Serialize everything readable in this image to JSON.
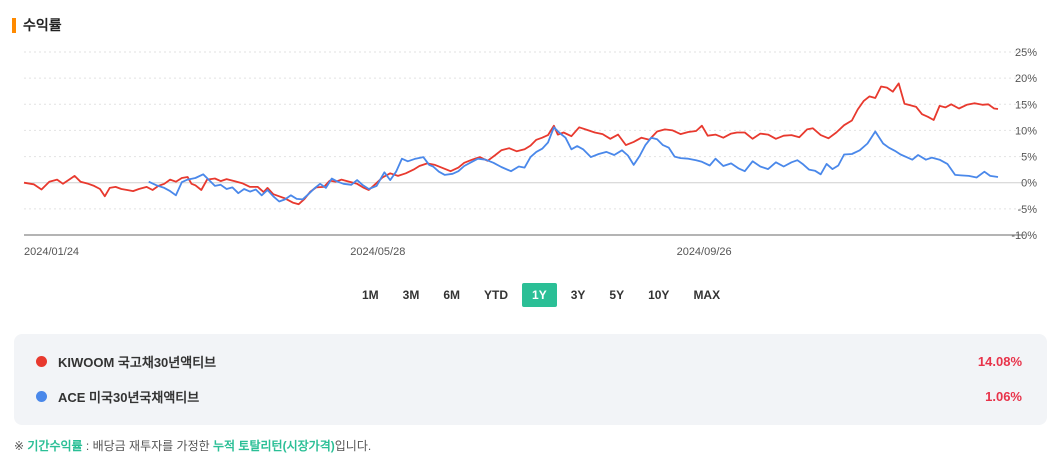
{
  "header": {
    "title": "수익률"
  },
  "chart_data": {
    "type": "line",
    "ylim": [
      -10,
      25
    ],
    "y_ticks": [
      25,
      20,
      15,
      10,
      5,
      0,
      -5,
      -10
    ],
    "y_tick_labels": [
      "25%",
      "20%",
      "15%",
      "10%",
      "5%",
      "0%",
      "-5%",
      "-10%"
    ],
    "x_tick_labels": [
      "2024/01/24",
      "2024/05/28",
      "2024/09/26"
    ],
    "x_tick_positions": [
      0,
      0.335,
      0.67
    ],
    "grid": true,
    "series": [
      {
        "name": "KIWOOM 국고채30년액티브",
        "color": "#e8392e",
        "points": [
          [
            0,
            0
          ],
          [
            0.01,
            -0.3
          ],
          [
            0.018,
            -1.3
          ],
          [
            0.026,
            0.2
          ],
          [
            0.034,
            0.6
          ],
          [
            0.04,
            -0.2
          ],
          [
            0.048,
            0.8
          ],
          [
            0.052,
            1.3
          ],
          [
            0.058,
            0.2
          ],
          [
            0.066,
            -0.2
          ],
          [
            0.072,
            -0.6
          ],
          [
            0.078,
            -1.2
          ],
          [
            0.083,
            -2.6
          ],
          [
            0.088,
            -1
          ],
          [
            0.094,
            -0.8
          ],
          [
            0.1,
            -1.2
          ],
          [
            0.106,
            -1.4
          ],
          [
            0.112,
            -1.6
          ],
          [
            0.118,
            -1.2
          ],
          [
            0.126,
            -0.8
          ],
          [
            0.132,
            -1.4
          ],
          [
            0.138,
            -0.6
          ],
          [
            0.144,
            -0.2
          ],
          [
            0.15,
            0.6
          ],
          [
            0.156,
            0.2
          ],
          [
            0.162,
            0.9
          ],
          [
            0.168,
            1.1
          ],
          [
            0.172,
            -0.2
          ],
          [
            0.176,
            -0.5
          ],
          [
            0.182,
            -1.4
          ],
          [
            0.188,
            0.6
          ],
          [
            0.196,
            0.8
          ],
          [
            0.202,
            0.3
          ],
          [
            0.208,
            0.7
          ],
          [
            0.216,
            0.3
          ],
          [
            0.224,
            -0.1
          ],
          [
            0.232,
            -0.8
          ],
          [
            0.24,
            -0.8
          ],
          [
            0.246,
            -1.8
          ],
          [
            0.25,
            -1
          ],
          [
            0.256,
            -2.2
          ],
          [
            0.262,
            -2.6
          ],
          [
            0.268,
            -3
          ],
          [
            0.276,
            -3.8
          ],
          [
            0.282,
            -4.1
          ],
          [
            0.288,
            -3.1
          ],
          [
            0.294,
            -1.7
          ],
          [
            0.3,
            -0.9
          ],
          [
            0.308,
            -0.8
          ],
          [
            0.314,
            0.4
          ],
          [
            0.32,
            0.2
          ],
          [
            0.326,
            0.6
          ],
          [
            0.334,
            0.2
          ],
          [
            0.342,
            -0.2
          ],
          [
            0.348,
            -0.9
          ],
          [
            0.354,
            -1.4
          ],
          [
            0.36,
            -0.4
          ],
          [
            0.368,
            1
          ],
          [
            0.376,
            1.8
          ],
          [
            0.384,
            1.3
          ],
          [
            0.392,
            1.8
          ],
          [
            0.4,
            2.5
          ],
          [
            0.406,
            3.2
          ],
          [
            0.414,
            3.7
          ],
          [
            0.422,
            3.4
          ],
          [
            0.43,
            2.8
          ],
          [
            0.438,
            2.2
          ],
          [
            0.446,
            2.9
          ],
          [
            0.452,
            3.8
          ],
          [
            0.46,
            4.4
          ],
          [
            0.468,
            4.9
          ],
          [
            0.476,
            4.2
          ],
          [
            0.484,
            5.3
          ],
          [
            0.49,
            6.2
          ],
          [
            0.498,
            6.6
          ],
          [
            0.506,
            6
          ],
          [
            0.514,
            6.4
          ],
          [
            0.52,
            7.1
          ],
          [
            0.526,
            8.2
          ],
          [
            0.532,
            8.6
          ],
          [
            0.538,
            9.1
          ],
          [
            0.544,
            10.9
          ],
          [
            0.548,
            9.2
          ],
          [
            0.554,
            9.6
          ],
          [
            0.562,
            8.9
          ],
          [
            0.57,
            10.6
          ],
          [
            0.578,
            10.1
          ],
          [
            0.586,
            9.6
          ],
          [
            0.594,
            9.3
          ],
          [
            0.602,
            8.4
          ],
          [
            0.61,
            9.2
          ],
          [
            0.618,
            7.2
          ],
          [
            0.626,
            7.8
          ],
          [
            0.634,
            8.6
          ],
          [
            0.642,
            8.2
          ],
          [
            0.65,
            9.8
          ],
          [
            0.658,
            10.2
          ],
          [
            0.666,
            10
          ],
          [
            0.674,
            9.3
          ],
          [
            0.682,
            9.7
          ],
          [
            0.69,
            9.9
          ],
          [
            0.696,
            10.9
          ],
          [
            0.702,
            9
          ],
          [
            0.71,
            9.2
          ],
          [
            0.718,
            8.6
          ],
          [
            0.726,
            9.4
          ],
          [
            0.732,
            9.6
          ],
          [
            0.74,
            9.6
          ],
          [
            0.748,
            8.4
          ],
          [
            0.756,
            9.4
          ],
          [
            0.764,
            9.2
          ],
          [
            0.772,
            8.4
          ],
          [
            0.78,
            9
          ],
          [
            0.788,
            9.1
          ],
          [
            0.796,
            8.7
          ],
          [
            0.804,
            10.2
          ],
          [
            0.81,
            10.4
          ],
          [
            0.818,
            9.1
          ],
          [
            0.826,
            8.5
          ],
          [
            0.834,
            9.6
          ],
          [
            0.842,
            11
          ],
          [
            0.85,
            11.9
          ],
          [
            0.856,
            14
          ],
          [
            0.862,
            15.6
          ],
          [
            0.868,
            16.5
          ],
          [
            0.874,
            16.2
          ],
          [
            0.88,
            18.4
          ],
          [
            0.886,
            18.2
          ],
          [
            0.892,
            17.4
          ],
          [
            0.898,
            19
          ],
          [
            0.904,
            15.1
          ],
          [
            0.91,
            14.8
          ],
          [
            0.916,
            14.5
          ],
          [
            0.922,
            13.1
          ],
          [
            0.928,
            12.6
          ],
          [
            0.934,
            12
          ],
          [
            0.94,
            14.7
          ],
          [
            0.946,
            14.4
          ],
          [
            0.952,
            15
          ],
          [
            0.96,
            14.2
          ],
          [
            0.968,
            14.9
          ],
          [
            0.976,
            15.2
          ],
          [
            0.984,
            14.9
          ],
          [
            0.99,
            15
          ],
          [
            0.996,
            14.2
          ],
          [
            1.0,
            14.1
          ]
        ]
      },
      {
        "name": "ACE 미국30년국채액티브",
        "color": "#4a88ea",
        "points": [
          [
            0.128,
            0.2
          ],
          [
            0.136,
            -0.5
          ],
          [
            0.144,
            -1
          ],
          [
            0.15,
            -1.6
          ],
          [
            0.156,
            -2.4
          ],
          [
            0.162,
            0.1
          ],
          [
            0.168,
            0.6
          ],
          [
            0.176,
            0.9
          ],
          [
            0.184,
            1.6
          ],
          [
            0.19,
            0.5
          ],
          [
            0.196,
            -0.6
          ],
          [
            0.202,
            -0.4
          ],
          [
            0.208,
            -1.2
          ],
          [
            0.214,
            -0.9
          ],
          [
            0.22,
            -2
          ],
          [
            0.226,
            -1.2
          ],
          [
            0.232,
            -1.7
          ],
          [
            0.238,
            -1.3
          ],
          [
            0.244,
            -2.4
          ],
          [
            0.25,
            -1.4
          ],
          [
            0.256,
            -2.6
          ],
          [
            0.262,
            -3.6
          ],
          [
            0.268,
            -3.2
          ],
          [
            0.274,
            -2.4
          ],
          [
            0.28,
            -3.1
          ],
          [
            0.286,
            -3.2
          ],
          [
            0.292,
            -2.2
          ],
          [
            0.298,
            -1.1
          ],
          [
            0.304,
            -0.2
          ],
          [
            0.31,
            -1
          ],
          [
            0.316,
            0.8
          ],
          [
            0.322,
            0.2
          ],
          [
            0.328,
            -0.2
          ],
          [
            0.336,
            -0.4
          ],
          [
            0.342,
            0.5
          ],
          [
            0.348,
            -0.5
          ],
          [
            0.354,
            -1.2
          ],
          [
            0.362,
            -0.6
          ],
          [
            0.37,
            2
          ],
          [
            0.376,
            0.5
          ],
          [
            0.382,
            2.1
          ],
          [
            0.388,
            4.6
          ],
          [
            0.394,
            4.1
          ],
          [
            0.402,
            4.6
          ],
          [
            0.41,
            4.9
          ],
          [
            0.416,
            3.4
          ],
          [
            0.42,
            3.1
          ],
          [
            0.426,
            2.1
          ],
          [
            0.432,
            1.5
          ],
          [
            0.44,
            1.7
          ],
          [
            0.446,
            2.2
          ],
          [
            0.452,
            3.2
          ],
          [
            0.458,
            3.8
          ],
          [
            0.466,
            4.6
          ],
          [
            0.474,
            4.4
          ],
          [
            0.482,
            3.8
          ],
          [
            0.49,
            3
          ],
          [
            0.5,
            2.2
          ],
          [
            0.508,
            3.1
          ],
          [
            0.514,
            2.9
          ],
          [
            0.52,
            4.9
          ],
          [
            0.526,
            5.9
          ],
          [
            0.532,
            6.5
          ],
          [
            0.538,
            7.7
          ],
          [
            0.544,
            10.6
          ],
          [
            0.55,
            9.5
          ],
          [
            0.556,
            8.6
          ],
          [
            0.562,
            6.4
          ],
          [
            0.568,
            7
          ],
          [
            0.574,
            6.4
          ],
          [
            0.582,
            4.9
          ],
          [
            0.59,
            5.5
          ],
          [
            0.598,
            5.9
          ],
          [
            0.606,
            5.3
          ],
          [
            0.614,
            6.2
          ],
          [
            0.62,
            5.2
          ],
          [
            0.626,
            3.4
          ],
          [
            0.632,
            5.1
          ],
          [
            0.638,
            7.2
          ],
          [
            0.644,
            8.6
          ],
          [
            0.65,
            8.3
          ],
          [
            0.656,
            7.2
          ],
          [
            0.662,
            6.7
          ],
          [
            0.668,
            5
          ],
          [
            0.674,
            4.7
          ],
          [
            0.682,
            4.6
          ],
          [
            0.69,
            4.3
          ],
          [
            0.696,
            4
          ],
          [
            0.704,
            3.3
          ],
          [
            0.71,
            4.6
          ],
          [
            0.718,
            3.2
          ],
          [
            0.726,
            3.7
          ],
          [
            0.734,
            2.7
          ],
          [
            0.74,
            2.2
          ],
          [
            0.748,
            4.1
          ],
          [
            0.756,
            3.1
          ],
          [
            0.764,
            2.6
          ],
          [
            0.772,
            3.9
          ],
          [
            0.78,
            3.1
          ],
          [
            0.788,
            3.9
          ],
          [
            0.794,
            4.3
          ],
          [
            0.8,
            3.5
          ],
          [
            0.806,
            2.5
          ],
          [
            0.812,
            2.3
          ],
          [
            0.818,
            1.6
          ],
          [
            0.824,
            3.6
          ],
          [
            0.83,
            2.6
          ],
          [
            0.836,
            3.3
          ],
          [
            0.842,
            5.4
          ],
          [
            0.85,
            5.5
          ],
          [
            0.858,
            6.2
          ],
          [
            0.866,
            7.5
          ],
          [
            0.874,
            9.8
          ],
          [
            0.882,
            7.5
          ],
          [
            0.888,
            6.7
          ],
          [
            0.894,
            6.1
          ],
          [
            0.9,
            5.4
          ],
          [
            0.906,
            4.9
          ],
          [
            0.912,
            4.4
          ],
          [
            0.918,
            5.3
          ],
          [
            0.926,
            4.4
          ],
          [
            0.932,
            4.8
          ],
          [
            0.94,
            4.4
          ],
          [
            0.948,
            3.6
          ],
          [
            0.956,
            1.5
          ],
          [
            0.962,
            1.4
          ],
          [
            0.97,
            1.3
          ],
          [
            0.978,
            1
          ],
          [
            0.986,
            2.1
          ],
          [
            0.992,
            1.3
          ],
          [
            1.0,
            1.1
          ]
        ]
      }
    ]
  },
  "periods": {
    "items": [
      "1M",
      "3M",
      "6M",
      "YTD",
      "1Y",
      "3Y",
      "5Y",
      "10Y",
      "MAX"
    ],
    "active": "1Y"
  },
  "legend": {
    "items": [
      {
        "name": "KIWOOM 국고채30년액티브",
        "value": "14.08%",
        "color": "#e8392e"
      },
      {
        "name": "ACE 미국30년국채액티브",
        "value": "1.06%",
        "color": "#4a88ea"
      }
    ]
  },
  "footnote": {
    "prefix": "※ ",
    "term": "기간수익률",
    "middle": " : 배당금 재투자를 가정한 ",
    "highlight": "누적 토탈리턴(시장가격)",
    "suffix": "입니다."
  }
}
